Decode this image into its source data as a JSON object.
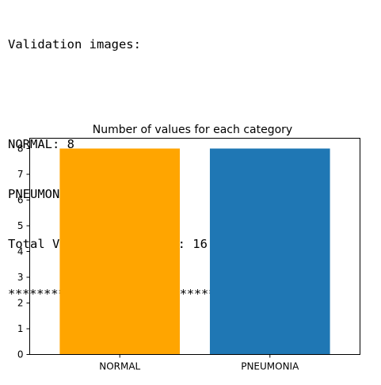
{
  "output": {
    "heading": "Validation images:",
    "lines": [
      "NORMAL: 8",
      "PNEUMONIA: 8",
      "Total Validation images: 16"
    ],
    "stars": "********************************************"
  },
  "chart_data": {
    "type": "bar",
    "title": "Number of values for each category",
    "categories": [
      "NORMAL",
      "PNEUMONIA"
    ],
    "values": [
      8,
      8
    ],
    "colors": [
      "#FFA500",
      "#1F77B4"
    ],
    "ylim": [
      0,
      8.4
    ],
    "yticks": [
      0,
      1,
      2,
      3,
      4,
      5,
      6,
      7,
      8
    ],
    "xlabel": "",
    "ylabel": "",
    "grid": false
  }
}
